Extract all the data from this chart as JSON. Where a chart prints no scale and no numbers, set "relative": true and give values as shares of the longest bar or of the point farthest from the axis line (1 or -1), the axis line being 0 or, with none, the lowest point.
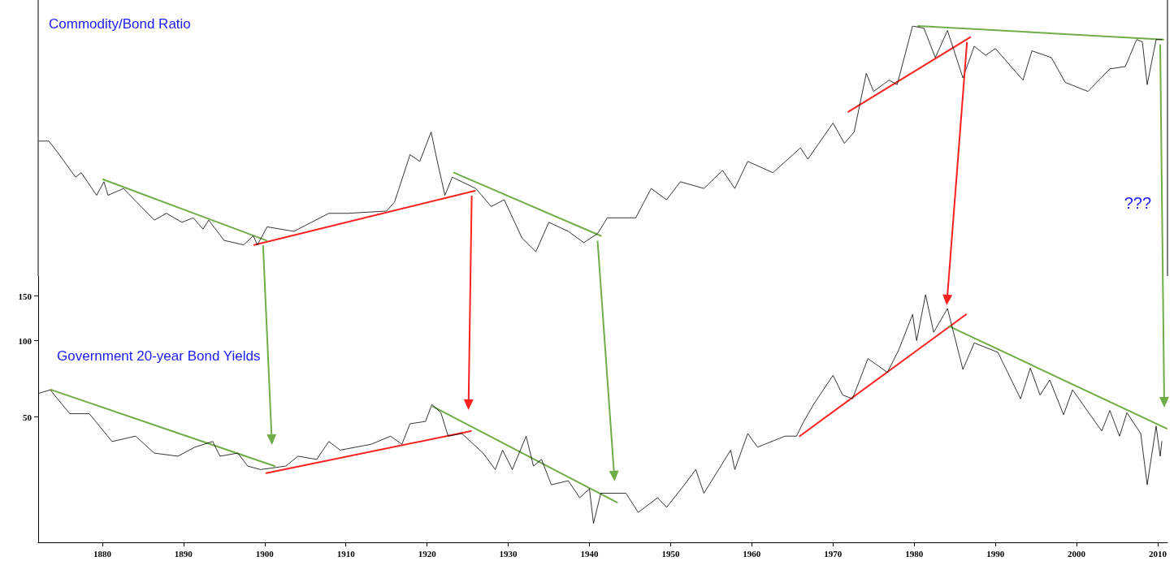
{
  "chart_data": [
    {
      "type": "line",
      "title": "Commodity/Bond Ratio",
      "relative": true,
      "tick_labels": false,
      "xlim": [
        1872.1,
        2011.2
      ],
      "xticks": [
        1880,
        1890,
        1900,
        1910,
        1920,
        1930,
        1940,
        1950,
        1960,
        1970,
        1980,
        1990,
        2000,
        2010
      ],
      "grid": false,
      "marker": "none",
      "line_style": "solid",
      "annotations": [
        "???"
      ],
      "series": [
        {
          "color": "#000000",
          "x": [
            1872.2,
            1873.4,
            1874.5,
            1876.7,
            1877.4,
            1879.3,
            1880.2,
            1880.7,
            1882.6,
            1886.4,
            1887.9,
            1889.8,
            1891.2,
            1892.4,
            1893.1,
            1895.0,
            1897.4,
            1898.6,
            1899.1,
            1900.3,
            1903.6,
            1907.9,
            1910.3,
            1915.0,
            1916.0,
            1917.9,
            1919.1,
            1920.5,
            1921.2,
            1922.2,
            1923.1,
            1926.0,
            1927.9,
            1929.5,
            1931.7,
            1933.4,
            1935.0,
            1937.4,
            1939.3,
            1941.0,
            1942.2,
            1945.7,
            1947.6,
            1949.5,
            1951.2,
            1954.1,
            1956.4,
            1957.9,
            1959.5,
            1962.6,
            1966.0,
            1966.9,
            1970.0,
            1971.4,
            1972.6,
            1974.1,
            1975.0,
            1976.9,
            1977.9,
            1979.8,
            1981.2,
            1982.6,
            1984.1,
            1986.0,
            1987.4,
            1988.8,
            1990.0,
            1993.4,
            1994.5,
            1996.9,
            1998.6,
            2001.4,
            2004.1,
            2006.0,
            2007.4,
            2008.1,
            2008.7,
            2009.8,
            2010.5
          ],
          "values": [
            0.49,
            0.49,
            0.44,
            0.33,
            0.35,
            0.25,
            0.31,
            0.25,
            0.28,
            0.14,
            0.17,
            0.13,
            0.15,
            0.1,
            0.14,
            0.05,
            0.03,
            0.07,
            0.03,
            0.11,
            0.09,
            0.17,
            0.17,
            0.18,
            0.22,
            0.43,
            0.4,
            0.53,
            0.41,
            0.25,
            0.33,
            0.28,
            0.2,
            0.23,
            0.06,
            0,
            0.13,
            0.09,
            0.04,
            0.08,
            0.15,
            0.15,
            0.28,
            0.23,
            0.31,
            0.28,
            0.36,
            0.28,
            0.4,
            0.35,
            0.46,
            0.41,
            0.57,
            0.48,
            0.53,
            0.79,
            0.71,
            0.76,
            0.74,
            1,
            0.99,
            0.86,
            0.98,
            0.77,
            0.91,
            0.87,
            0.9,
            0.76,
            0.89,
            0.86,
            0.75,
            0.71,
            0.81,
            0.82,
            0.94,
            0.93,
            0.74,
            0.94,
            0.94
          ]
        },
        {
          "color": "#70ad47",
          "x": [
            1880.1,
            1900.2
          ],
          "values": [
            0.32,
            0.05
          ]
        },
        {
          "color": "#ff2020",
          "x": [
            1898.7,
            1925.9
          ],
          "values": [
            0.03,
            0.27
          ]
        },
        {
          "color": "#70ad47",
          "x": [
            1923.3,
            1941.4
          ],
          "values": [
            0.35,
            0.07
          ]
        },
        {
          "color": "#ff2020",
          "x": [
            1971.9,
            1986.9
          ],
          "values": [
            0.62,
            0.95
          ]
        },
        {
          "color": "#70ad47",
          "x": [
            1980.5,
            2010.7
          ],
          "values": [
            1.0,
            0.94
          ]
        }
      ]
    },
    {
      "type": "line",
      "title": "Government 20-year Bond Yields",
      "log": true,
      "xlim": [
        1872.1,
        2011.2
      ],
      "xticks": [
        1880,
        1890,
        1900,
        1910,
        1920,
        1930,
        1940,
        1950,
        1960,
        1970,
        1980,
        1990,
        2000,
        2010
      ],
      "ylim": [
        16,
        180
      ],
      "yticks": [
        50,
        100,
        150
      ],
      "grid": false,
      "marker": "none",
      "line_style": "solid",
      "series": [
        {
          "color": "#000000",
          "x": [
            1872.2,
            1873.6,
            1874.1,
            1876.0,
            1878.4,
            1881.2,
            1884.1,
            1886.4,
            1889.3,
            1891.4,
            1893.6,
            1894.5,
            1896.7,
            1897.9,
            1899.5,
            1902.6,
            1904.1,
            1906.4,
            1907.9,
            1909.3,
            1913.1,
            1915.5,
            1916.9,
            1917.9,
            1919.8,
            1920.6,
            1921.7,
            1922.6,
            1924.3,
            1926.9,
            1928.4,
            1929.3,
            1930.5,
            1932.2,
            1933.1,
            1934.1,
            1935.3,
            1937.4,
            1938.8,
            1940.0,
            1940.5,
            1941.4,
            1944.5,
            1946.0,
            1948.4,
            1949.5,
            1951.7,
            1953.1,
            1954.1,
            1957.4,
            1957.9,
            1959.5,
            1960.7,
            1964.1,
            1965.5,
            1966.4,
            1967.6,
            1970.0,
            1971.2,
            1972.4,
            1974.3,
            1976.7,
            1978.1,
            1979.8,
            1980.3,
            1981.4,
            1982.4,
            1984.1,
            1986.0,
            1987.4,
            1990.3,
            1993.1,
            1994.3,
            1995.5,
            1996.7,
            1998.4,
            1999.5,
            2003.1,
            2004.1,
            2005.3,
            2006.2,
            2007.9,
            2008.7,
            2009.8,
            2010.3,
            2010.5
          ],
          "values": [
            62,
            64,
            61,
            51.5,
            51.5,
            40,
            42,
            36,
            35,
            38,
            40,
            35,
            36,
            32,
            31,
            32,
            35,
            34,
            40,
            37,
            39,
            42,
            39,
            47,
            48,
            56,
            52,
            42,
            43,
            36,
            31,
            37,
            31,
            42,
            32,
            34,
            27,
            28,
            24,
            26,
            19,
            25,
            25,
            21,
            24,
            22,
            27,
            31,
            25,
            37,
            31,
            43,
            38,
            42,
            42,
            48,
            56,
            73,
            61,
            59,
            85,
            75,
            92,
            127,
            100,
            152,
            108,
            134,
            77,
            98,
            90,
            59,
            78,
            61,
            70,
            51,
            64,
            44,
            53,
            42,
            52,
            43,
            27,
            46,
            35,
            40
          ]
        },
        {
          "color": "#70ad47",
          "x": [
            1873.7,
            1901.2
          ],
          "values": [
            64,
            32
          ]
        },
        {
          "color": "#ff2020",
          "x": [
            1900.2,
            1925.4
          ],
          "values": [
            30,
            44
          ]
        },
        {
          "color": "#70ad47",
          "x": [
            1920.7,
            1943.4
          ],
          "values": [
            55,
            23
          ]
        },
        {
          "color": "#ff2020",
          "x": [
            1965.9,
            1986.4
          ],
          "values": [
            42,
            127
          ]
        },
        {
          "color": "#70ad47",
          "x": [
            1984.3,
            2011.1
          ],
          "values": [
            114,
            45
          ]
        }
      ]
    }
  ]
}
